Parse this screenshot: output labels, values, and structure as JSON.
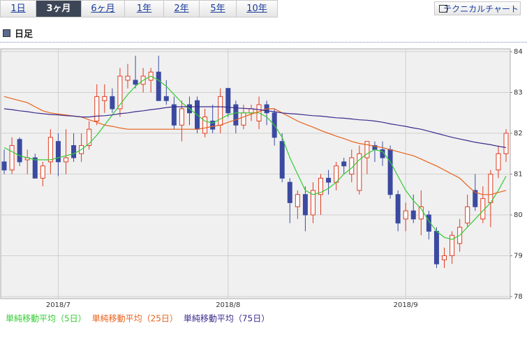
{
  "tabs": [
    {
      "label": "1日",
      "selected": false
    },
    {
      "label": "3ヶ月",
      "selected": true
    },
    {
      "label": "6ヶ月",
      "selected": false
    },
    {
      "label": "1年",
      "selected": false
    },
    {
      "label": "2年",
      "selected": false
    },
    {
      "label": "5年",
      "selected": false
    },
    {
      "label": "10年",
      "selected": false
    }
  ],
  "button": "テクニカルチャート",
  "header": "日足",
  "chart_data": {
    "type": "candlestick",
    "categories": [
      null,
      null,
      null,
      null,
      null,
      null,
      null,
      "2018/7",
      null,
      null,
      null,
      null,
      null,
      null,
      null,
      null,
      null,
      null,
      null,
      null,
      null,
      null,
      null,
      null,
      null,
      null,
      null,
      null,
      null,
      "2018/8",
      null,
      null,
      null,
      null,
      null,
      null,
      null,
      null,
      null,
      null,
      null,
      null,
      null,
      null,
      null,
      null,
      null,
      null,
      null,
      null,
      null,
      null,
      "2018/9",
      null,
      null,
      null,
      null,
      null,
      null,
      null,
      null,
      null,
      null,
      null,
      null,
      null
    ],
    "open": [
      81.3,
      81.1,
      81.85,
      81.35,
      81.4,
      80.9,
      81.3,
      81.8,
      81.3,
      81.7,
      81.5,
      81.7,
      82.3,
      82.8,
      82.9,
      82.6,
      83.3,
      83.3,
      83.2,
      83.3,
      83.5,
      82.9,
      82.7,
      82.2,
      82.7,
      82.8,
      82.0,
      82.3,
      82.2,
      83.1,
      82.7,
      82.2,
      82.5,
      82.3,
      82.7,
      82.5,
      81.8,
      80.8,
      80.2,
      80.5,
      80.0,
      80.5,
      80.9,
      80.8,
      81.3,
      81.0,
      80.6,
      81.4,
      81.7,
      81.6,
      81.6,
      80.5,
      79.9,
      80.1,
      79.9,
      80.0,
      79.6,
      78.9,
      79.0,
      79.3,
      79.8,
      80.6,
      79.9,
      80.3,
      81.1,
      81.5
    ],
    "high": [
      81.6,
      81.9,
      81.9,
      81.6,
      81.5,
      81.3,
      82.1,
      82.0,
      82.1,
      82.0,
      82.0,
      82.3,
      83.2,
      83.2,
      83.1,
      83.6,
      83.7,
      83.9,
      83.6,
      83.6,
      83.9,
      83.3,
      82.9,
      82.8,
      82.9,
      82.9,
      82.6,
      82.7,
      83.1,
      83.1,
      82.8,
      82.7,
      82.7,
      82.9,
      82.8,
      82.6,
      82.0,
      80.9,
      80.6,
      80.7,
      80.8,
      81.0,
      81.1,
      81.3,
      81.4,
      81.6,
      81.7,
      81.8,
      81.8,
      81.8,
      81.7,
      80.6,
      80.3,
      80.5,
      80.6,
      80.1,
      79.7,
      79.2,
      79.6,
      79.9,
      80.5,
      81.0,
      80.7,
      81.1,
      81.7,
      82.1
    ],
    "low": [
      81.0,
      81.0,
      81.2,
      81.0,
      80.9,
      80.7,
      81.0,
      80.95,
      81.0,
      81.3,
      81.3,
      81.6,
      82.2,
      82.5,
      82.5,
      82.4,
      83.1,
      83.1,
      83.0,
      83.0,
      82.8,
      82.7,
      82.1,
      81.8,
      82.2,
      82.0,
      81.9,
      82.0,
      82.0,
      82.4,
      82.0,
      82.1,
      82.3,
      82.1,
      82.2,
      81.7,
      80.8,
      79.8,
      79.9,
      79.6,
      79.8,
      80.0,
      80.5,
      80.6,
      81.0,
      80.8,
      80.5,
      81.0,
      81.3,
      81.2,
      80.4,
      79.6,
      79.6,
      79.8,
      79.5,
      79.4,
      78.7,
      78.7,
      78.8,
      79.1,
      79.7,
      80.1,
      79.8,
      79.7,
      80.9,
      81.3
    ],
    "close": [
      81.1,
      81.7,
      81.3,
      81.4,
      80.9,
      81.2,
      81.9,
      81.3,
      81.4,
      81.4,
      81.7,
      82.1,
      82.9,
      82.9,
      82.6,
      83.4,
      83.4,
      83.2,
      83.4,
      83.5,
      82.8,
      82.8,
      82.2,
      82.6,
      82.5,
      82.1,
      82.4,
      82.1,
      82.9,
      82.5,
      82.2,
      82.5,
      82.6,
      82.7,
      82.5,
      81.9,
      80.9,
      80.3,
      80.5,
      80.0,
      80.6,
      80.9,
      80.8,
      81.2,
      81.2,
      81.4,
      81.5,
      81.8,
      81.6,
      81.4,
      80.5,
      79.8,
      80.1,
      79.9,
      80.2,
      79.6,
      78.8,
      79.0,
      79.5,
      79.7,
      80.2,
      80.2,
      80.4,
      81.0,
      81.5,
      82.0
    ],
    "up_color": "#e03a1e",
    "down_color": "#3b4aa0",
    "series": [
      {
        "name": "単純移動平均（5日）",
        "color": "#33cc33",
        "values": [
          81.65,
          81.55,
          81.45,
          81.4,
          81.35,
          81.35,
          81.35,
          81.4,
          81.45,
          81.5,
          81.6,
          81.75,
          81.95,
          82.2,
          82.45,
          82.7,
          82.95,
          83.15,
          83.3,
          83.4,
          83.3,
          83.15,
          82.95,
          82.75,
          82.6,
          82.45,
          82.3,
          82.25,
          82.35,
          82.45,
          82.5,
          82.5,
          82.5,
          82.5,
          82.4,
          82.2,
          81.9,
          81.4,
          81.0,
          80.6,
          80.5,
          80.55,
          80.65,
          80.8,
          81.0,
          81.15,
          81.35,
          81.5,
          81.6,
          81.55,
          81.3,
          80.95,
          80.6,
          80.35,
          80.15,
          79.85,
          79.6,
          79.45,
          79.4,
          79.5,
          79.7,
          79.9,
          80.1,
          80.3,
          80.6,
          80.95
        ]
      },
      {
        "name": "単純移動平均（25日）",
        "color": "#e8611a",
        "values": [
          82.9,
          82.85,
          82.8,
          82.75,
          82.65,
          82.55,
          82.5,
          82.47,
          82.45,
          82.42,
          82.4,
          82.33,
          82.27,
          82.2,
          82.17,
          82.13,
          82.1,
          82.1,
          82.1,
          82.1,
          82.1,
          82.1,
          82.1,
          82.1,
          82.1,
          82.1,
          82.13,
          82.17,
          82.2,
          82.27,
          82.33,
          82.4,
          82.47,
          82.53,
          82.6,
          82.6,
          82.5,
          82.4,
          82.3,
          82.22,
          82.15,
          82.07,
          82.0,
          81.93,
          81.87,
          81.8,
          81.75,
          81.72,
          81.68,
          81.65,
          81.6,
          81.55,
          81.5,
          81.45,
          81.37,
          81.28,
          81.2,
          81.1,
          81.0,
          80.9,
          80.72,
          80.55,
          80.5,
          80.5,
          80.55,
          80.6
        ]
      },
      {
        "name": "単純移動平均（75日）",
        "color": "#3a2a8c",
        "values": [
          82.6,
          82.58,
          82.55,
          82.53,
          82.5,
          82.48,
          82.46,
          82.45,
          82.43,
          82.42,
          82.4,
          82.4,
          82.42,
          82.43,
          82.45,
          82.48,
          82.5,
          82.53,
          82.55,
          82.58,
          82.6,
          82.63,
          82.65,
          82.65,
          82.65,
          82.65,
          82.65,
          82.65,
          82.65,
          82.64,
          82.62,
          82.61,
          82.6,
          82.58,
          82.55,
          82.53,
          82.5,
          82.48,
          82.47,
          82.45,
          82.43,
          82.42,
          82.4,
          82.38,
          82.37,
          82.35,
          82.33,
          82.32,
          82.3,
          82.27,
          82.23,
          82.2,
          82.17,
          82.13,
          82.1,
          82.05,
          82.0,
          81.95,
          81.9,
          81.86,
          81.82,
          81.78,
          81.75,
          81.72,
          81.68,
          81.65
        ]
      }
    ],
    "ylim": [
      78,
      84
    ],
    "yticks": [
      78,
      79,
      80,
      81,
      82,
      83,
      84
    ],
    "grid": true,
    "legend": "bottom-left"
  }
}
